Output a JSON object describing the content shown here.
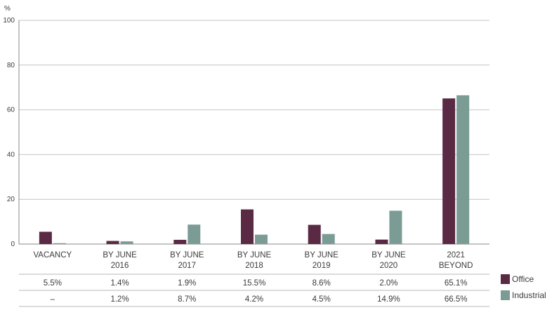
{
  "chart_data": {
    "type": "bar",
    "ylabel": "%",
    "ylim": [
      0,
      100
    ],
    "yticks": [
      "0",
      "20",
      "40",
      "60",
      "80",
      "100"
    ],
    "grid": true,
    "categories": [
      [
        "VACANCY"
      ],
      [
        "BY JUNE",
        "2016"
      ],
      [
        "BY JUNE",
        "2017"
      ],
      [
        "BY JUNE",
        "2018"
      ],
      [
        "BY JUNE",
        "2019"
      ],
      [
        "BY JUNE",
        "2020"
      ],
      [
        "2021",
        "BEYOND"
      ]
    ],
    "series": [
      {
        "name": "Office",
        "color": "#5a2a45",
        "values": [
          5.5,
          1.4,
          1.9,
          15.5,
          8.6,
          2.0,
          65.1
        ],
        "labels": [
          "5.5%",
          "1.4%",
          "1.9%",
          "15.5%",
          "8.6%",
          "2.0%",
          "65.1%"
        ]
      },
      {
        "name": "Industrial",
        "color": "#7a9c94",
        "values": [
          0.4,
          1.2,
          8.7,
          4.2,
          4.5,
          14.9,
          66.5
        ],
        "labels": [
          "–",
          "1.2%",
          "8.7%",
          "4.2%",
          "4.5%",
          "14.9%",
          "66.5%"
        ]
      }
    ],
    "legend_position": "right"
  }
}
